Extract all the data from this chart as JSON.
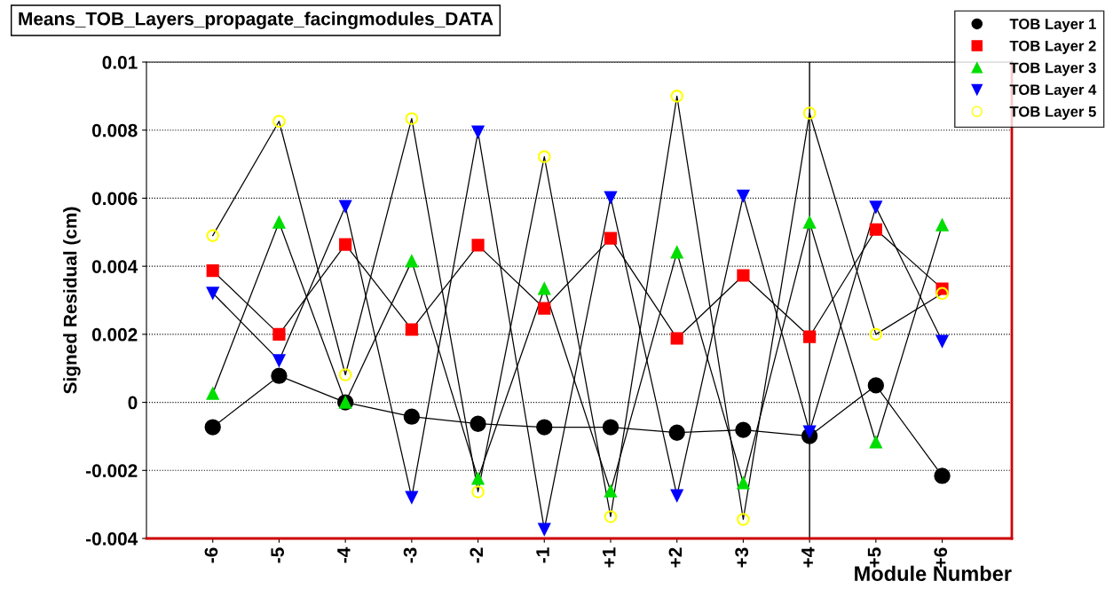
{
  "chart_data": {
    "type": "line",
    "title": "Means_TOB_Layers_propagate_facingmodules_DATA",
    "xlabel": "Module Number",
    "ylabel": "Signed Residual (cm)",
    "categories": [
      "-6",
      "-5",
      "-4",
      "-3",
      "-2",
      "-1",
      "+1",
      "+2",
      "+3",
      "+4",
      "+5",
      "+6"
    ],
    "series": [
      {
        "name": "TOB Layer 1",
        "color": "#000000",
        "marker": "circle",
        "values": [
          -0.00073,
          0.00078,
          0.0,
          -0.00042,
          -0.00063,
          -0.00073,
          -0.00073,
          -0.00089,
          -0.00081,
          -0.00099,
          0.0005,
          -0.00216
        ]
      },
      {
        "name": "TOB Layer 2",
        "color": "#ff0000",
        "marker": "square",
        "values": [
          0.00387,
          0.002,
          0.00464,
          0.00214,
          0.00462,
          0.00276,
          0.00482,
          0.00188,
          0.00373,
          0.00193,
          0.00508,
          0.00334
        ]
      },
      {
        "name": "TOB Layer 3",
        "color": "#00dd00",
        "marker": "triangle",
        "values": [
          0.00026,
          0.00529,
          0.0,
          0.00415,
          -0.00224,
          0.00334,
          -0.00261,
          0.00441,
          -0.00237,
          0.00529,
          -0.00117,
          0.00521
        ]
      },
      {
        "name": "TOB Layer 4",
        "color": "#0000ff",
        "marker": "triangle_down",
        "values": [
          0.00321,
          0.00123,
          0.00576,
          -0.00279,
          0.00795,
          -0.00373,
          0.00602,
          -0.00274,
          0.00607,
          -0.00086,
          0.00574,
          0.0018
        ]
      },
      {
        "name": "TOB Layer 5",
        "color": "#ffff00",
        "marker": "open_circle",
        "values": [
          0.0049,
          0.00826,
          0.00081,
          0.00834,
          -0.00263,
          0.00722,
          -0.00336,
          0.009,
          -0.00344,
          0.0085,
          0.002,
          0.0032
        ]
      }
    ],
    "ylim": [
      -0.004,
      0.01
    ],
    "yticks": [
      {
        "value": -0.004,
        "label": "-0.004"
      },
      {
        "value": -0.002,
        "label": "-0.002"
      },
      0,
      0.002,
      0.004,
      0.006,
      0.008,
      0.01
    ],
    "ref_lines": [
      {
        "axis": "x",
        "value": "+4",
        "color": "#000000"
      }
    ],
    "grid": "y",
    "legend": "top right"
  }
}
